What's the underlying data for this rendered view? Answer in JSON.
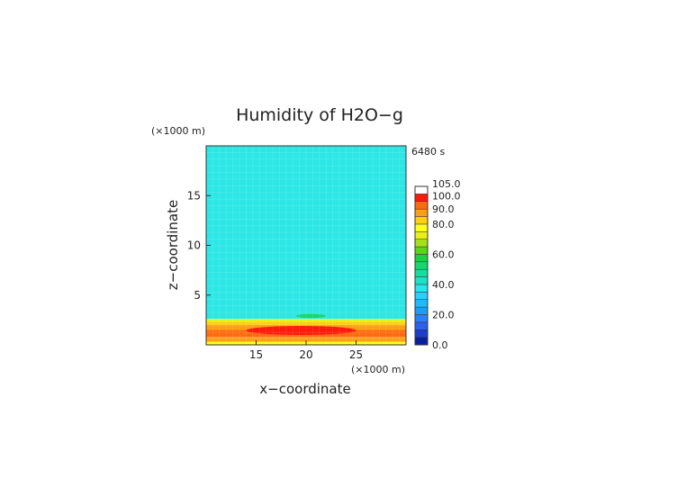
{
  "chart_data": {
    "type": "heatmap",
    "title": "Humidity of H2O−g",
    "time_label": "6480 s",
    "xlabel": "x−coordinate",
    "ylabel": "z−coordinate",
    "x_unit": "(×1000 m)",
    "y_unit": "(×1000 m)",
    "xlim": [
      10,
      30
    ],
    "ylim": [
      0,
      20
    ],
    "x_ticks": [
      15,
      20,
      25
    ],
    "y_ticks": [
      5,
      10,
      15
    ],
    "grid": false,
    "legend_placement": "right",
    "colorbar": {
      "min": 0,
      "max": 105,
      "labels": [
        {
          "value": 0,
          "text": "0.0"
        },
        {
          "value": 20,
          "text": "20.0"
        },
        {
          "value": 40,
          "text": "40.0"
        },
        {
          "value": 60,
          "text": "60.0"
        },
        {
          "value": 80,
          "text": "80.0"
        },
        {
          "value": 90,
          "text": "90.0"
        },
        {
          "value": 100,
          "text": "100.0"
        },
        {
          "value": 105,
          "text": "105.0"
        }
      ],
      "bands": [
        {
          "from": 0,
          "to": 5,
          "color": "#0a1f9e"
        },
        {
          "from": 5,
          "to": 10,
          "color": "#1a3fcf"
        },
        {
          "from": 10,
          "to": 15,
          "color": "#2a62ee"
        },
        {
          "from": 15,
          "to": 20,
          "color": "#2f7eff"
        },
        {
          "from": 20,
          "to": 25,
          "color": "#1f9dff"
        },
        {
          "from": 25,
          "to": 30,
          "color": "#22b8ff"
        },
        {
          "from": 30,
          "to": 35,
          "color": "#24d2ff"
        },
        {
          "from": 35,
          "to": 40,
          "color": "#26e6ee"
        },
        {
          "from": 40,
          "to": 45,
          "color": "#1be3c8"
        },
        {
          "from": 45,
          "to": 50,
          "color": "#17dca0"
        },
        {
          "from": 50,
          "to": 55,
          "color": "#18d670"
        },
        {
          "from": 55,
          "to": 60,
          "color": "#1ad040"
        },
        {
          "from": 60,
          "to": 65,
          "color": "#5cd419"
        },
        {
          "from": 65,
          "to": 70,
          "color": "#a6e01a"
        },
        {
          "from": 70,
          "to": 75,
          "color": "#e6f018"
        },
        {
          "from": 75,
          "to": 80,
          "color": "#ffff1a"
        },
        {
          "from": 80,
          "to": 85,
          "color": "#ffcf14"
        },
        {
          "from": 85,
          "to": 90,
          "color": "#ff9e12"
        },
        {
          "from": 90,
          "to": 95,
          "color": "#ff6a10"
        },
        {
          "from": 95,
          "to": 100,
          "color": "#ff1a0c"
        },
        {
          "from": 100,
          "to": 105,
          "color": "#ffffff"
        }
      ]
    },
    "layers": [
      {
        "z_from": 2.6,
        "z_to": 20,
        "value": 42,
        "color": "#2ce7e6"
      },
      {
        "z_from": 2.3,
        "z_to": 2.6,
        "value": 70,
        "color": "#e6f018"
      },
      {
        "z_from": 2.0,
        "z_to": 2.3,
        "value": 82,
        "color": "#ffcf14"
      },
      {
        "z_from": 1.5,
        "z_to": 2.0,
        "value": 88,
        "color": "#ff9e12"
      },
      {
        "z_from": 0.8,
        "z_to": 1.5,
        "value": 93,
        "color": "#ff6a10"
      },
      {
        "z_from": 0.3,
        "z_to": 0.8,
        "value": 86,
        "color": "#ff9e12"
      },
      {
        "z_from": 0.0,
        "z_to": 0.3,
        "value": 78,
        "color": "#ffff1a"
      }
    ],
    "cores": [
      {
        "x_center": 19.5,
        "x_halfwidth": 5.5,
        "z_from": 1.0,
        "z_to": 1.9,
        "value": 97,
        "color": "#ff1a0c"
      },
      {
        "x_center": 20.5,
        "x_halfwidth": 1.5,
        "z_from": 2.7,
        "z_to": 3.1,
        "value": 55,
        "color": "#18d670"
      }
    ]
  }
}
